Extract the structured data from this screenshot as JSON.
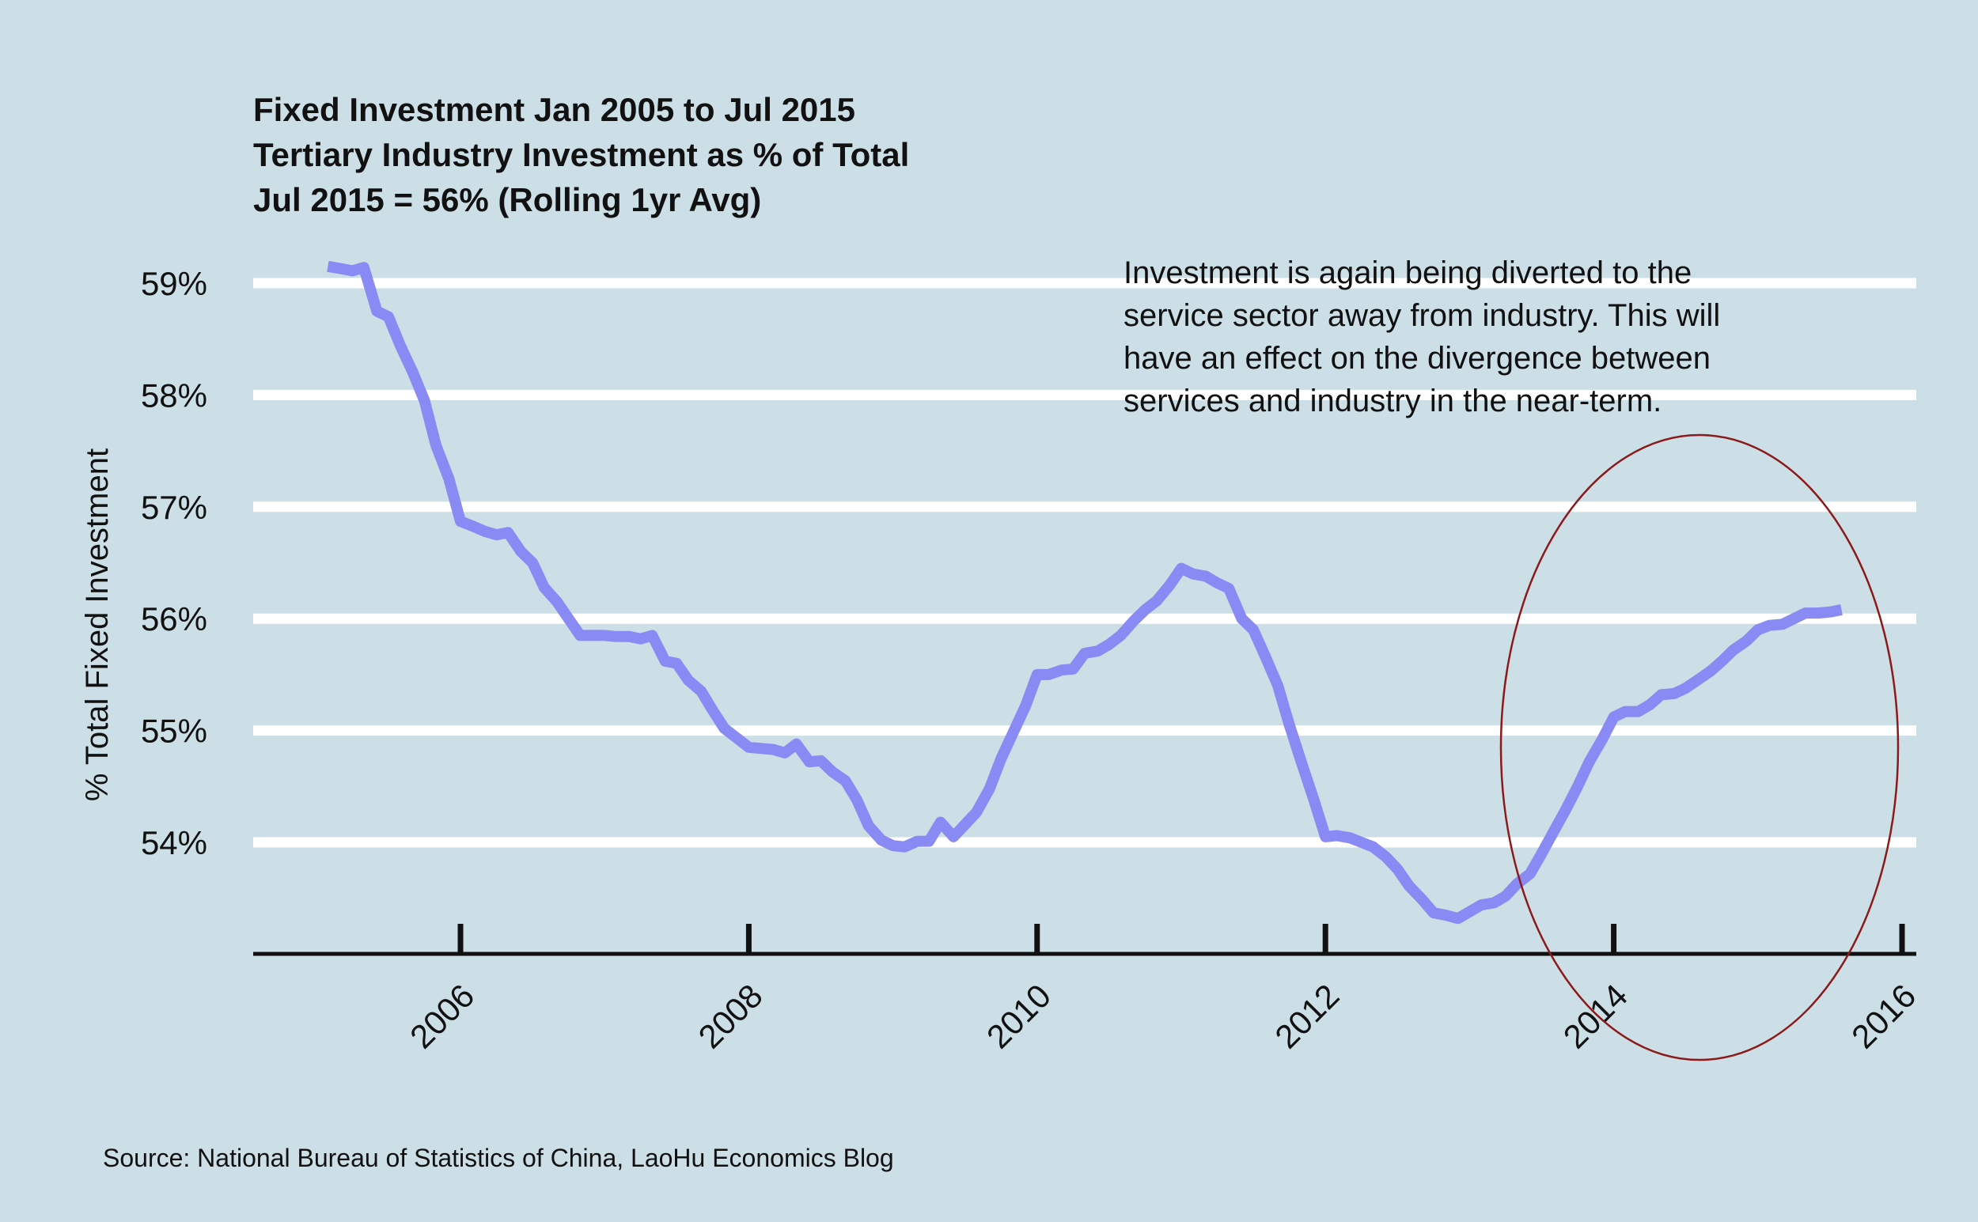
{
  "chart_data": {
    "type": "line",
    "title_lines": [
      "Fixed Investment Jan 2005 to Jul 2015",
      "Tertiary Industry Investment as % of Total",
      "Jul 2015 = 56% (Rolling 1yr Avg)"
    ],
    "ylabel": "% Total Fixed Investment",
    "xlabel": "",
    "y_ticks": [
      54,
      55,
      56,
      57,
      58,
      59
    ],
    "y_tick_labels": [
      "54%",
      "55%",
      "56%",
      "57%",
      "58%",
      "59%"
    ],
    "x_ticks": [
      2006,
      2008,
      2010,
      2012,
      2014,
      2016
    ],
    "x_tick_labels": [
      "2006",
      "2008",
      "2010",
      "2012",
      "2014",
      "2016"
    ],
    "xlim": [
      2004.57,
      2016.1
    ],
    "ylim": [
      53.0,
      59.7
    ],
    "grid": "horizontal",
    "annotation_lines": [
      "Investment is again being diverted to the",
      "service sector away from industry.  This will",
      "have an effect on the divergence between",
      "services and industry in the near-term."
    ],
    "source": "Source: National Bureau of Statistics of China, LaoHu Economics Blog",
    "series": [
      {
        "color": "#8a8af5",
        "x": [
          2005.08,
          2005.17,
          2005.25,
          2005.33,
          2005.42,
          2005.5,
          2005.58,
          2005.67,
          2005.75,
          2005.83,
          2005.92,
          2006.0,
          2006.08,
          2006.17,
          2006.25,
          2006.33,
          2006.42,
          2006.5,
          2006.58,
          2006.67,
          2006.75,
          2006.83,
          2006.92,
          2007.0,
          2007.08,
          2007.17,
          2007.25,
          2007.33,
          2007.42,
          2007.5,
          2007.58,
          2007.67,
          2007.75,
          2007.83,
          2007.92,
          2008.0,
          2008.08,
          2008.17,
          2008.25,
          2008.33,
          2008.42,
          2008.5,
          2008.58,
          2008.67,
          2008.75,
          2008.83,
          2008.92,
          2009.0,
          2009.08,
          2009.17,
          2009.25,
          2009.33,
          2009.42,
          2009.5,
          2009.58,
          2009.67,
          2009.75,
          2009.83,
          2009.92,
          2010.0,
          2010.08,
          2010.17,
          2010.25,
          2010.33,
          2010.42,
          2010.5,
          2010.58,
          2010.67,
          2010.75,
          2010.83,
          2010.92,
          2011.0,
          2011.08,
          2011.17,
          2011.25,
          2011.33,
          2011.42,
          2011.5,
          2011.58,
          2011.67,
          2011.75,
          2011.83,
          2011.92,
          2012.0,
          2012.08,
          2012.17,
          2012.25,
          2012.33,
          2012.42,
          2012.5,
          2012.58,
          2012.67,
          2012.75,
          2012.83,
          2012.92,
          2013.0,
          2013.08,
          2013.17,
          2013.25,
          2013.33,
          2013.42,
          2013.5,
          2013.58,
          2013.67,
          2013.75,
          2013.83,
          2013.92,
          2014.0,
          2014.08,
          2014.17,
          2014.25,
          2014.33,
          2014.42,
          2014.5,
          2014.58,
          2014.67,
          2014.75,
          2014.83,
          2014.92,
          2015.0,
          2015.08,
          2015.17,
          2015.25,
          2015.33,
          2015.42,
          2015.5,
          2015.58
        ],
        "y": [
          59.15,
          59.13,
          59.11,
          59.14,
          58.75,
          58.7,
          58.45,
          58.2,
          57.95,
          57.55,
          57.25,
          56.87,
          56.83,
          56.78,
          56.75,
          56.77,
          56.6,
          56.5,
          56.28,
          56.15,
          56.0,
          55.85,
          55.85,
          55.85,
          55.84,
          55.84,
          55.82,
          55.85,
          55.62,
          55.6,
          55.45,
          55.35,
          55.18,
          55.02,
          54.93,
          54.85,
          54.84,
          54.83,
          54.8,
          54.88,
          54.72,
          54.73,
          54.63,
          54.55,
          54.38,
          54.15,
          54.02,
          53.97,
          53.96,
          54.01,
          54.01,
          54.18,
          54.05,
          54.16,
          54.27,
          54.48,
          54.75,
          54.97,
          55.22,
          55.5,
          55.5,
          55.54,
          55.55,
          55.69,
          55.71,
          55.77,
          55.85,
          55.98,
          56.08,
          56.16,
          56.3,
          56.45,
          56.4,
          56.38,
          56.32,
          56.27,
          56.0,
          55.9,
          55.67,
          55.4,
          55.05,
          54.73,
          54.38,
          54.05,
          54.06,
          54.04,
          54.0,
          53.96,
          53.87,
          53.76,
          53.61,
          53.49,
          53.37,
          53.35,
          53.32,
          53.38,
          53.44,
          53.46,
          53.52,
          53.63,
          53.72,
          53.9,
          54.09,
          54.3,
          54.5,
          54.72,
          54.92,
          55.12,
          55.17,
          55.17,
          55.23,
          55.32,
          55.33,
          55.38,
          55.45,
          55.53,
          55.62,
          55.72,
          55.8,
          55.9,
          55.94,
          55.95,
          56.0,
          56.05,
          56.05,
          56.06,
          56.08
        ]
      }
    ]
  }
}
